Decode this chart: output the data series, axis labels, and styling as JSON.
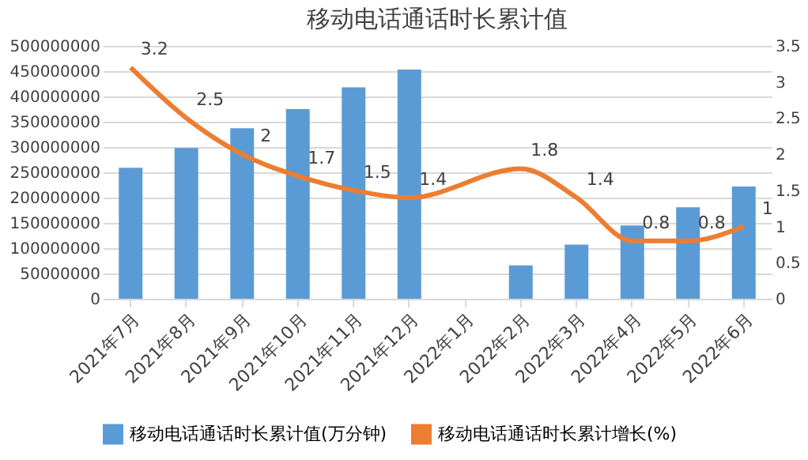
{
  "chart_data": {
    "type": "bar",
    "title": "移动电话通话时长累计值",
    "categories": [
      "2021年7月",
      "2021年8月",
      "2021年9月",
      "2021年10月",
      "2021年11月",
      "2021年12月",
      "2022年1月",
      "2022年2月",
      "2022年3月",
      "2022年4月",
      "2022年5月",
      "2022年6月"
    ],
    "series": [
      {
        "name": "移动电话通话时长累计值(万分钟)",
        "color": "#5b9bd5",
        "values": [
          259000000,
          298000000,
          337000000,
          375000000,
          418000000,
          453000000,
          null,
          66000000,
          107000000,
          145000000,
          181000000,
          222000000
        ]
      },
      {
        "name": "移动电话通话时长累计增长(%)",
        "type": "line",
        "axis": "y2",
        "color": "#ed7d31",
        "values": [
          3.2,
          2.5,
          2,
          1.7,
          1.5,
          1.4,
          null,
          1.8,
          1.4,
          0.8,
          0.8,
          1
        ],
        "value_labels": [
          "3.2",
          "2.5",
          "2",
          "1.7",
          "1.5",
          "1.4",
          null,
          "1.8",
          "1.4",
          "0.8",
          "0.8",
          "1"
        ]
      }
    ],
    "ylim": [
      0,
      500000000
    ],
    "yticks": [
      0,
      50000000,
      100000000,
      150000000,
      200000000,
      250000000,
      300000000,
      350000000,
      400000000,
      450000000,
      500000000
    ],
    "y2lim": [
      0,
      3.5
    ],
    "y2ticks": [
      0,
      0.5,
      1,
      1.5,
      2,
      2.5,
      3,
      3.5
    ],
    "grid": "y",
    "legend": "bottom",
    "marker": "none",
    "line_style": "solid"
  }
}
